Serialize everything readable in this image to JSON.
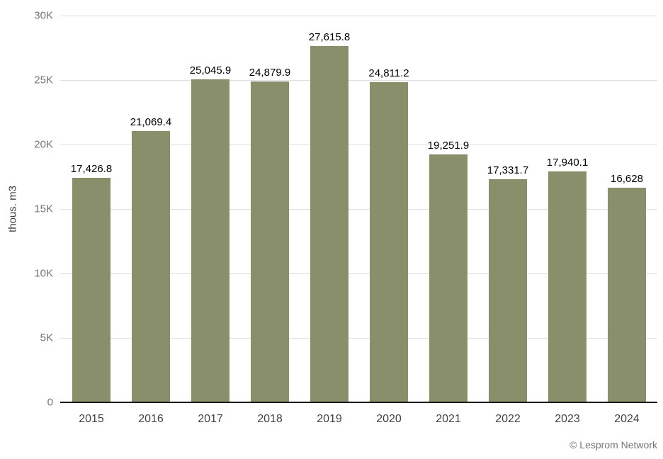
{
  "chart_data": {
    "type": "bar",
    "title": "",
    "categories": [
      "2015",
      "2016",
      "2017",
      "2018",
      "2019",
      "2020",
      "2021",
      "2022",
      "2023",
      "2024"
    ],
    "values": [
      17426.8,
      21069.4,
      25045.9,
      24879.9,
      27615.8,
      24811.2,
      19251.9,
      17331.7,
      17940.1,
      16628
    ],
    "value_labels": [
      "17,426.8",
      "21,069.4",
      "25,045.9",
      "24,879.9",
      "27,615.8",
      "24,811.2",
      "19,251.9",
      "17,331.7",
      "17,940.1",
      "16,628"
    ],
    "xlabel": "",
    "ylabel": "thous. m3",
    "ylim": [
      0,
      30000
    ],
    "yticks": [
      {
        "value": 0,
        "label": "0"
      },
      {
        "value": 5000,
        "label": "5K"
      },
      {
        "value": 10000,
        "label": "10K"
      },
      {
        "value": 15000,
        "label": "15K"
      },
      {
        "value": 20000,
        "label": "20K"
      },
      {
        "value": 25000,
        "label": "25K"
      },
      {
        "value": 30000,
        "label": "30K"
      }
    ],
    "grid": true,
    "legend_position": "none",
    "colors": {
      "bar": "#8a8f6b",
      "gridline": "#e0e0e0",
      "axis_line": "#1a1a1a",
      "y_tick_text": "#757575",
      "x_tick_text": "#424242",
      "value_label_text": "#000000",
      "background": "#ffffff"
    }
  },
  "attribution": "© Lesprom Network"
}
